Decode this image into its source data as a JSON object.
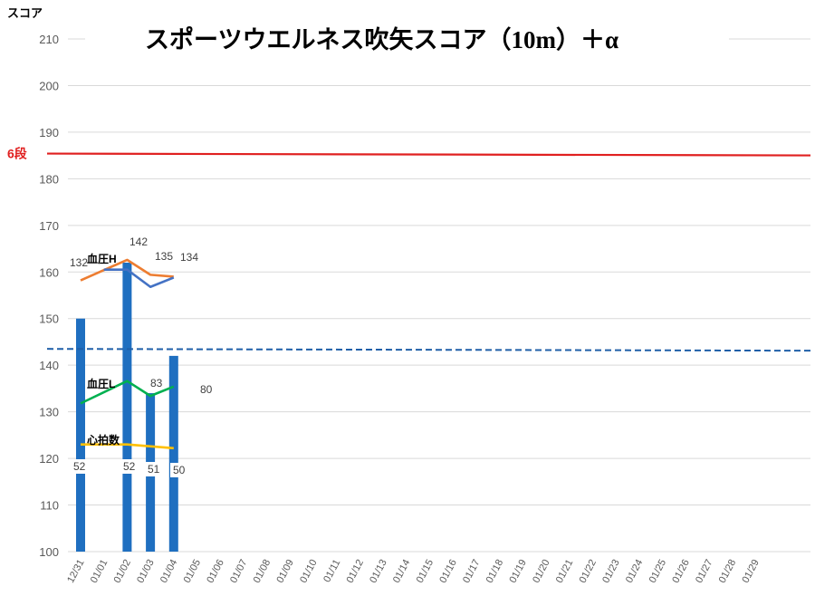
{
  "chart_data": {
    "type": "bar",
    "title": "スポーツウエルネス吹矢スコア（10m）＋α",
    "ylabel": "スコア",
    "xlabel": "",
    "ylim": [
      100,
      210
    ],
    "yticks": [
      100,
      110,
      120,
      130,
      140,
      150,
      160,
      170,
      180,
      190,
      200,
      210
    ],
    "grid": true,
    "categories": [
      "12/31",
      "01/01",
      "01/02",
      "01/03",
      "01/04",
      "01/05",
      "01/06",
      "01/07",
      "01/08",
      "01/09",
      "01/10",
      "01/11",
      "01/12",
      "01/13",
      "01/14",
      "01/15",
      "01/16",
      "01/17",
      "01/18",
      "01/19",
      "01/20",
      "01/21",
      "01/22",
      "01/23",
      "01/24",
      "01/25",
      "01/26",
      "01/27",
      "01/28",
      "01/29"
    ],
    "bars": [
      {
        "category": "12/31",
        "value": 150
      },
      {
        "category": "01/02",
        "value": 162
      },
      {
        "category": "01/03",
        "value": 134
      },
      {
        "category": "01/04",
        "value": 142
      }
    ],
    "series": [
      {
        "name": "血圧H",
        "color": "#ED7D31",
        "points": [
          [
            "12/31",
            158.2
          ],
          [
            "01/02",
            162.6
          ],
          [
            "01/03",
            159.4
          ],
          [
            "01/04",
            159.0
          ]
        ],
        "labels": [
          [
            "12/31",
            "132"
          ],
          [
            "01/02",
            "142"
          ],
          [
            "01/03",
            "135"
          ],
          [
            "01/04",
            "134"
          ]
        ]
      },
      {
        "name": "",
        "color": "#4472C4",
        "points": [
          [
            "01/01",
            160.5
          ],
          [
            "01/02",
            160.5
          ],
          [
            "01/03",
            156.8
          ],
          [
            "01/04",
            158.8
          ]
        ],
        "labels": []
      },
      {
        "name": "血圧L",
        "color": "#00B050",
        "points": [
          [
            "12/31",
            131.8
          ],
          [
            "01/02",
            136.6
          ],
          [
            "01/03",
            133.4
          ],
          [
            "01/04",
            135.4
          ]
        ],
        "labels": [
          [
            "01/03",
            "83"
          ],
          [
            "01/04",
            "80"
          ]
        ]
      },
      {
        "name": "心拍数",
        "color": "#FFC000",
        "points": [
          [
            "12/31",
            123.0
          ],
          [
            "01/02",
            123.0
          ],
          [
            "01/04",
            122.2
          ]
        ],
        "labels": [
          [
            "12/31",
            "52"
          ],
          [
            "01/02",
            "52"
          ],
          [
            "01/03",
            "51"
          ],
          [
            "01/04",
            "50"
          ]
        ]
      }
    ],
    "reference_lines": [
      {
        "label": "6段",
        "value": 185.4,
        "color": "#E02020",
        "style": "solid"
      },
      {
        "label": "",
        "value": 143.5,
        "color": "#1F5FA8",
        "style": "dashed"
      }
    ]
  }
}
